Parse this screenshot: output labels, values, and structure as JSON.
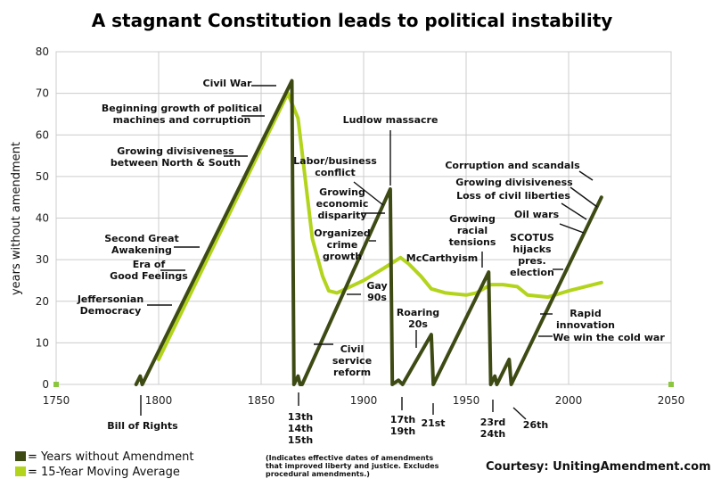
{
  "chart_data": {
    "type": "line",
    "title": "A stagnant Constitution leads to political instability",
    "xlabel": "",
    "ylabel": "years without amendment",
    "xlim": [
      1750,
      2050
    ],
    "ylim": [
      0,
      80
    ],
    "xticks": [
      1750,
      1800,
      1850,
      1900,
      1950,
      2000,
      2050
    ],
    "yticks": [
      0,
      10,
      20,
      30,
      40,
      50,
      60,
      70,
      80
    ],
    "grid": true,
    "colors": {
      "years": "#3d4a14",
      "average": "#b3d41c",
      "grid": "#cccccc",
      "marker": "#8cc63f"
    },
    "series": [
      {
        "name": "Years without Amendment",
        "color": "#3d4a14",
        "points": [
          [
            1789,
            0
          ],
          [
            1791,
            2
          ],
          [
            1792,
            0
          ],
          [
            1865,
            73
          ],
          [
            1866,
            0
          ],
          [
            1868,
            2
          ],
          [
            1869,
            0
          ],
          [
            1870,
            0
          ],
          [
            1913,
            47
          ],
          [
            1914,
            0
          ],
          [
            1917,
            1
          ],
          [
            1919,
            0
          ],
          [
            1933,
            12
          ],
          [
            1934,
            0
          ],
          [
            1961,
            27
          ],
          [
            1962,
            0
          ],
          [
            1964,
            2
          ],
          [
            1965,
            0
          ],
          [
            1971,
            6
          ],
          [
            1972,
            0
          ],
          [
            2016,
            45
          ]
        ]
      },
      {
        "name": "15-Year Moving Average",
        "color": "#b3d41c",
        "points": [
          [
            1800,
            6
          ],
          [
            1863,
            70
          ],
          [
            1868,
            64
          ],
          [
            1875,
            35
          ],
          [
            1880,
            26
          ],
          [
            1883,
            22.5
          ],
          [
            1887,
            22
          ],
          [
            1900,
            25
          ],
          [
            1910,
            28
          ],
          [
            1918,
            30.5
          ],
          [
            1922,
            29
          ],
          [
            1928,
            26
          ],
          [
            1933,
            23
          ],
          [
            1940,
            22
          ],
          [
            1950,
            21.5
          ],
          [
            1955,
            22
          ],
          [
            1962,
            24
          ],
          [
            1968,
            24
          ],
          [
            1975,
            23.5
          ],
          [
            1980,
            21.5
          ],
          [
            1990,
            21
          ],
          [
            2000,
            22.5
          ],
          [
            2016,
            24.5
          ]
        ]
      }
    ],
    "annotations": [
      {
        "lines": [
          "Civil War"
        ]
      },
      {
        "lines": [
          "Beginning growth of political",
          "machines and corruption"
        ]
      },
      {
        "lines": [
          "Growing divisiveness",
          "between North & South"
        ]
      },
      {
        "lines": [
          "Second Great",
          "Awakening"
        ]
      },
      {
        "lines": [
          "Era of",
          "Good Feelings"
        ]
      },
      {
        "lines": [
          "Jeffersonian",
          "Democracy"
        ]
      },
      {
        "lines": [
          "Bill of Rights"
        ]
      },
      {
        "lines": [
          "Ludlow massacre"
        ]
      },
      {
        "lines": [
          "Labor/business",
          "conflict"
        ]
      },
      {
        "lines": [
          "Growing",
          "economic",
          "disparity"
        ]
      },
      {
        "lines": [
          "Organized",
          "crime",
          "growth"
        ]
      },
      {
        "lines": [
          "Gay",
          "90s"
        ]
      },
      {
        "lines": [
          "Civil",
          "service",
          "reform"
        ]
      },
      {
        "lines": [
          "13th",
          "14th",
          "15th"
        ]
      },
      {
        "lines": [
          "Roaring",
          "20s"
        ]
      },
      {
        "lines": [
          "17th",
          "19th"
        ]
      },
      {
        "lines": [
          "21st"
        ]
      },
      {
        "lines": [
          "McCarthyism"
        ]
      },
      {
        "lines": [
          "Growing",
          "racial",
          "tensions"
        ]
      },
      {
        "lines": [
          "23rd",
          "24th"
        ]
      },
      {
        "lines": [
          "26th"
        ]
      },
      {
        "lines": [
          "Corruption and scandals"
        ]
      },
      {
        "lines": [
          "Growing divisiveness"
        ]
      },
      {
        "lines": [
          "Loss of civil liberties"
        ]
      },
      {
        "lines": [
          "Oil wars"
        ]
      },
      {
        "lines": [
          "SCOTUS",
          "hijacks",
          "pres.",
          "election"
        ]
      },
      {
        "lines": [
          "Rapid",
          "innovation"
        ]
      },
      {
        "lines": [
          "We win the cold war"
        ]
      }
    ],
    "legend": [
      {
        "label": "= Years without Amendment",
        "color": "#3d4a14"
      },
      {
        "label": "= 15-Year Moving Average",
        "color": "#b3d41c"
      }
    ],
    "note": [
      "(Indicates effective dates of amendments",
      "that improved liberty and justice. Excludes",
      "procedural amendments.)"
    ],
    "credit": "Courtesy: UnitingAmendment.com"
  }
}
